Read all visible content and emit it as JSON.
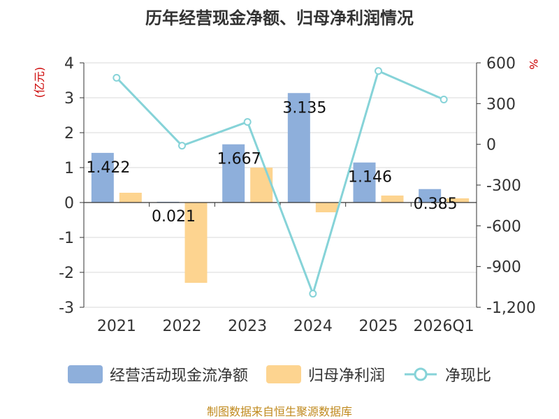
{
  "title": "历年经营现金净额、归母净利润情况",
  "footer": "制图数据来自恒生聚源数据库",
  "chart_data": {
    "type": "bar",
    "categories": [
      "2021",
      "2022",
      "2023",
      "2024",
      "2025",
      "2026Q1"
    ],
    "series": [
      {
        "name": "经营活动现金流净额",
        "kind": "bar",
        "axis": "left",
        "color": "#8eafdb",
        "values": [
          1.422,
          0.021,
          1.667,
          3.135,
          1.146,
          0.385
        ],
        "labels": [
          "1.422",
          "0.021",
          "1.667",
          "3.135",
          "1.146",
          "0.385"
        ]
      },
      {
        "name": "归母净利润",
        "kind": "bar",
        "axis": "left",
        "color": "#fdd490",
        "values": [
          0.28,
          -2.3,
          1.0,
          -0.28,
          0.2,
          0.12
        ]
      },
      {
        "name": "净现比",
        "kind": "line",
        "axis": "right",
        "color": "#86d3d8",
        "values": [
          490,
          -10,
          165,
          -1100,
          540,
          330
        ]
      }
    ],
    "left_axis": {
      "label": "(亿元)",
      "min": -3,
      "max": 4,
      "ticks": [
        4,
        3,
        2,
        1,
        0,
        -1,
        -2,
        -3
      ]
    },
    "right_axis": {
      "label": "%",
      "min": -1200,
      "max": 600,
      "ticks": [
        600,
        300,
        0,
        -300,
        -600,
        -900,
        -1200
      ],
      "tick_labels": [
        "600",
        "300",
        "0",
        "-300",
        "-600",
        "-900",
        "-1,200"
      ]
    }
  },
  "legend": [
    {
      "name": "经营活动现金流净额",
      "color": "#8eafdb",
      "kind": "bar"
    },
    {
      "name": "归母净利润",
      "color": "#fdd490",
      "kind": "bar"
    },
    {
      "name": "净现比",
      "color": "#86d3d8",
      "kind": "line"
    }
  ]
}
